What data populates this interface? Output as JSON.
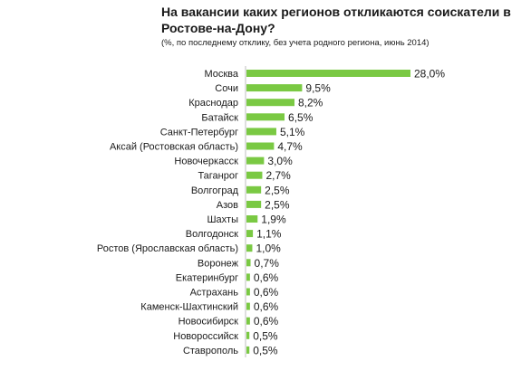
{
  "chart_data": {
    "type": "bar",
    "orientation": "horizontal",
    "title": "На вакансии каких регионов откликаются соискатели в Ростове-на-Дону?",
    "subtitle": "(%, по последнему отклику, без учета родного региона, июнь 2014)",
    "categories": [
      "Москва",
      "Сочи",
      "Краснодар",
      "Батайск",
      "Санкт-Петербург",
      "Аксай (Ростовская область)",
      "Новочеркасск",
      "Таганрог",
      "Волгоград",
      "Азов",
      "Шахты",
      "Волгодонск",
      "Ростов (Ярославская область)",
      "Воронеж",
      "Екатеринбург",
      "Астрахань",
      "Каменск-Шахтинский",
      "Новосибирск",
      "Новороссийск",
      "Ставрополь"
    ],
    "values": [
      28.0,
      9.5,
      8.2,
      6.5,
      5.1,
      4.7,
      3.0,
      2.7,
      2.5,
      2.5,
      1.9,
      1.1,
      1.0,
      0.7,
      0.6,
      0.6,
      0.6,
      0.6,
      0.5,
      0.5
    ],
    "data_labels": [
      "28,0%",
      "9,5%",
      "8,2%",
      "6,5%",
      "5,1%",
      "4,7%",
      "3,0%",
      "2,7%",
      "2,5%",
      "2,5%",
      "1,9%",
      "1,1%",
      "1,0%",
      "0,7%",
      "0,6%",
      "0,6%",
      "0,6%",
      "0,6%",
      "0,5%",
      "0,5%"
    ],
    "bar_color": "#7ac943",
    "axis_color": "#bfbfbf",
    "xlim": [
      0,
      28.0
    ],
    "grid": false,
    "legend": "none"
  }
}
